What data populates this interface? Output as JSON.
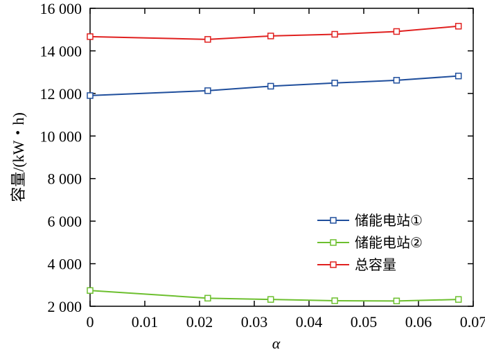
{
  "chart_data": {
    "type": "line",
    "xlabel": "α",
    "ylabel": "容量/(kW・h)",
    "xlim": [
      0,
      0.07
    ],
    "ylim": [
      2000,
      16000
    ],
    "xticks": [
      0,
      0.01,
      0.02,
      0.03,
      0.04,
      0.05,
      0.06,
      0.07
    ],
    "xtick_labels": [
      "0",
      "0.01",
      "0.02",
      "0.03",
      "0.04",
      "0.05",
      "0.06",
      "0.07"
    ],
    "yticks": [
      2000,
      4000,
      6000,
      8000,
      10000,
      12000,
      14000,
      16000
    ],
    "ytick_labels": [
      "2 000",
      "4 000",
      "6 000",
      "8 000",
      "10 000",
      "12 000",
      "14 000",
      "16 000"
    ],
    "grid": false,
    "legend_position": "center-right",
    "series": [
      {
        "name": "储能电站①",
        "color": "#1f4e9c",
        "marker": "square",
        "x": [
          0,
          0.0215,
          0.033,
          0.0447,
          0.056,
          0.0673
        ],
        "y": [
          11900,
          12130,
          12340,
          12490,
          12620,
          12820
        ]
      },
      {
        "name": "储能电站②",
        "color": "#6cbf2e",
        "marker": "square",
        "x": [
          0,
          0.0215,
          0.033,
          0.0447,
          0.056,
          0.0673
        ],
        "y": [
          2740,
          2380,
          2320,
          2260,
          2250,
          2320
        ]
      },
      {
        "name": "总容量",
        "color": "#e0201f",
        "marker": "square",
        "x": [
          0,
          0.0215,
          0.033,
          0.0447,
          0.056,
          0.0673
        ],
        "y": [
          14670,
          14540,
          14700,
          14780,
          14910,
          15160
        ]
      }
    ]
  }
}
